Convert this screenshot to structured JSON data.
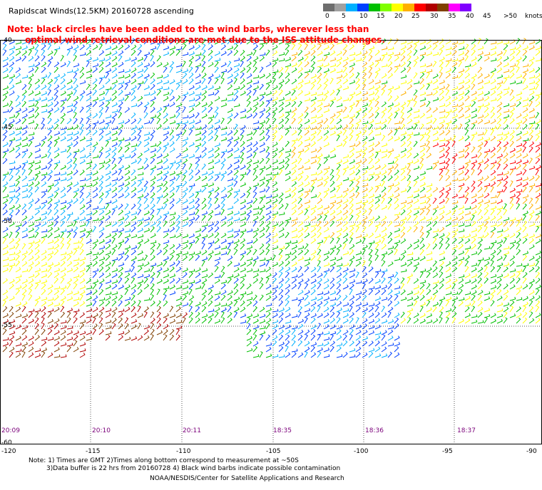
{
  "title": "Rapidscat Winds(12.5KM) 20160728 ascending",
  "note_line1": "Note: black circles have been added to the wind barbs, wherever less than",
  "note_line2": "      optimal wind retrieval conditions are met due to the ISS attitude changes.",
  "legend": {
    "labels": [
      "0",
      "5",
      "10",
      "15",
      "20",
      "25",
      "30",
      "35",
      "40",
      "45",
      ">50",
      "knots"
    ],
    "colors": [
      "#6e6e6e",
      "#a0a0a0",
      "#00b0ff",
      "#0040ff",
      "#00c000",
      "#80ff00",
      "#ffff00",
      "#ffb000",
      "#ff0000",
      "#b00000",
      "#804000",
      "#ff00ff",
      "#8000ff"
    ]
  },
  "lat_labels": [
    "-40",
    "-45",
    "-50",
    "-55",
    "-60"
  ],
  "lon_labels": [
    "-120",
    "-115",
    "-110",
    "-105",
    "-100",
    "-95",
    "-90"
  ],
  "time_labels": [
    "20:09",
    "20:10",
    "20:11",
    "18:35",
    "18:36",
    "18:37"
  ],
  "footer": {
    "line1": "Note: 1) Times are GMT 2)Times along bottom correspond to measurement at ~50S",
    "line2": "3)Data buffer is 22 hrs from 20160728 4) Black wind barbs indicate possible contamination",
    "line3": "NOAA/NESDIS/Center for Satellite Applications and Research"
  }
}
